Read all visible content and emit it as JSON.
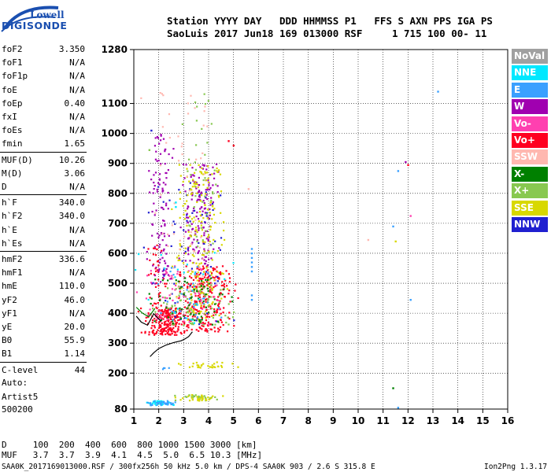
{
  "logo": {
    "line1": "Lowell",
    "line2": "DIGISONDE"
  },
  "header": {
    "row1": "Station YYYY DAY   DDD HHMMSS P1   FFS S AXN PPS IGA PS",
    "row2": "SaoLuis 2017 Jun18 169 013000 RSF     1 715 100 00- 11"
  },
  "params": [
    {
      "label": "foF2",
      "value": "3.350"
    },
    {
      "label": "foF1",
      "value": "N/A"
    },
    {
      "label": "foF1p",
      "value": "N/A"
    },
    {
      "label": "foE",
      "value": "N/A"
    },
    {
      "label": "foEp",
      "value": "0.40"
    },
    {
      "label": "fxI",
      "value": "N/A"
    },
    {
      "label": "foEs",
      "value": "N/A"
    },
    {
      "label": "fmin",
      "value": "1.65"
    },
    {
      "label": "MUF(D)",
      "value": "10.26"
    },
    {
      "label": "M(D)",
      "value": "3.06"
    },
    {
      "label": "D",
      "value": "N/A"
    },
    {
      "label": "h`F",
      "value": "340.0"
    },
    {
      "label": "h`F2",
      "value": "340.0"
    },
    {
      "label": "h`E",
      "value": "N/A"
    },
    {
      "label": "h`Es",
      "value": "N/A"
    },
    {
      "label": "hmF2",
      "value": "336.6"
    },
    {
      "label": "hmF1",
      "value": "N/A"
    },
    {
      "label": "hmE",
      "value": "110.0"
    },
    {
      "label": "yF2",
      "value": "46.0"
    },
    {
      "label": "yF1",
      "value": "N/A"
    },
    {
      "label": "yE",
      "value": "20.0"
    },
    {
      "label": "B0",
      "value": "55.9"
    },
    {
      "label": "B1",
      "value": "1.14"
    },
    {
      "label": "C-level",
      "value": "44"
    }
  ],
  "auto": {
    "line1": "Auto:",
    "line2": "Artist5",
    "line3": "500200"
  },
  "legend": [
    {
      "label": "NoVal",
      "bg": "#a0a0a0",
      "fg": "#ffffff"
    },
    {
      "label": "NNE",
      "bg": "#00e8ff",
      "fg": "#ffffff"
    },
    {
      "label": "E",
      "bg": "#3aa0ff",
      "fg": "#ffffff"
    },
    {
      "label": "W",
      "bg": "#a000b0",
      "fg": "#ffffff"
    },
    {
      "label": "Vo-",
      "bg": "#ff40b0",
      "fg": "#ffffff"
    },
    {
      "label": "Vo+",
      "bg": "#ff0020",
      "fg": "#ffffff"
    },
    {
      "label": "SSW",
      "bg": "#ffb8b0",
      "fg": "#ffffff"
    },
    {
      "label": "X-",
      "bg": "#008000",
      "fg": "#ffffff"
    },
    {
      "label": "X+",
      "bg": "#88c850",
      "fg": "#ffffff"
    },
    {
      "label": "SSE",
      "bg": "#d8d800",
      "fg": "#ffffff"
    },
    {
      "label": "NNW",
      "bg": "#2020d0",
      "fg": "#ffffff"
    }
  ],
  "bottom": {
    "row_d": "D     100  200  400  600  800 1000 1500 3000 [km]",
    "row_muf": "MUF   3.7  3.7  3.9  4.1  4.5  5.0  6.5 10.3 [MHz]",
    "file_info": "SAA0K_2017169013000.RSF / 300fx256h 50 kHz 5.0 km / DPS-4 SAA0K 903 / 2.6 S 315.8 E",
    "version": "Ion2Png 1.3.17"
  },
  "chart_data": {
    "type": "scatter",
    "title": "",
    "xlabel": "",
    "ylabel": "",
    "xlim": [
      1,
      16
    ],
    "ylim": [
      80,
      1280
    ],
    "x_ticks": [
      1,
      2,
      3,
      4,
      5,
      6,
      7,
      8,
      9,
      10,
      11,
      12,
      13,
      14,
      15,
      16
    ],
    "y_ticks": [
      80,
      200,
      300,
      400,
      500,
      600,
      700,
      800,
      900,
      1000,
      1100,
      1280
    ],
    "grid": "on",
    "legend_position": "right",
    "traces": [
      {
        "name": "NoVal",
        "x": [
          1.65,
          1.8,
          2.0,
          2.3,
          2.6,
          2.9,
          3.05,
          3.2,
          3.35
        ],
        "y": [
          255,
          268,
          282,
          294,
          302,
          308,
          314,
          322,
          338
        ]
      },
      {
        "name": "NoVal",
        "x": [
          1.1,
          1.3,
          1.55,
          1.8,
          2.1
        ],
        "y": [
          390,
          370,
          360,
          398,
          372
        ]
      },
      {
        "name": "X-",
        "x": [
          1.1,
          1.35,
          1.6,
          1.85
        ],
        "y": [
          420,
          400,
          388,
          416
        ]
      }
    ],
    "clusters": [
      {
        "name": "Vo+",
        "x": [
          1.5,
          3.0
        ],
        "y": [
          330,
          420
        ],
        "points": 230
      },
      {
        "name": "Vo+",
        "x": [
          3.0,
          4.8
        ],
        "y": [
          340,
          560
        ],
        "points": 260
      },
      {
        "name": "Vo+",
        "x": [
          1.6,
          2.2
        ],
        "y": [
          420,
          650
        ],
        "points": 40
      },
      {
        "name": "Vo-",
        "x": [
          1.6,
          4.6
        ],
        "y": [
          360,
          560
        ],
        "points": 80
      },
      {
        "name": "W",
        "x": [
          1.6,
          2.4
        ],
        "y": [
          500,
          1000
        ],
        "points": 110
      },
      {
        "name": "W",
        "x": [
          3.0,
          4.3
        ],
        "y": [
          560,
          900
        ],
        "points": 160
      },
      {
        "name": "NNW",
        "x": [
          1.6,
          4.6
        ],
        "y": [
          360,
          850
        ],
        "points": 70
      },
      {
        "name": "SSE",
        "x": [
          2.8,
          4.5
        ],
        "y": [
          380,
          900
        ],
        "points": 200
      },
      {
        "name": "SSE",
        "x": [
          2.9,
          4.8
        ],
        "y": [
          220,
          240
        ],
        "points": 30
      },
      {
        "name": "X+",
        "x": [
          2.0,
          5.0
        ],
        "y": [
          360,
          500
        ],
        "points": 80
      },
      {
        "name": "X+",
        "x": [
          3.0,
          4.3
        ],
        "y": [
          600,
          1140
        ],
        "points": 40
      },
      {
        "name": "X-",
        "x": [
          1.6,
          4.8
        ],
        "y": [
          360,
          520
        ],
        "points": 70
      },
      {
        "name": "SSW",
        "x": [
          1.7,
          4.3
        ],
        "y": [
          450,
          1140
        ],
        "points": 60
      },
      {
        "name": "NNE",
        "x": [
          1.6,
          4.6
        ],
        "y": [
          360,
          620
        ],
        "points": 25
      },
      {
        "name": "E",
        "x": [
          1.6,
          4.5
        ],
        "y": [
          380,
          560
        ],
        "points": 30
      },
      {
        "name": "NNE",
        "x": [
          1.6,
          2.6
        ],
        "y": [
          95,
          110
        ],
        "points": 40
      },
      {
        "name": "E",
        "x": [
          1.6,
          2.6
        ],
        "y": [
          95,
          110
        ],
        "points": 30
      },
      {
        "name": "X+",
        "x": [
          2.8,
          4.2
        ],
        "y": [
          110,
          130
        ],
        "points": 30
      },
      {
        "name": "SSE",
        "x": [
          2.8,
          4.2
        ],
        "y": [
          110,
          130
        ],
        "points": 30
      },
      {
        "name": "E",
        "x": [
          2.0,
          2.4
        ],
        "y": [
          215,
          220
        ],
        "points": 4
      }
    ],
    "points": [
      {
        "name": "E",
        "x": 5.73,
        "y": 540
      },
      {
        "name": "E",
        "x": 5.73,
        "y": 555
      },
      {
        "name": "E",
        "x": 5.73,
        "y": 570
      },
      {
        "name": "E",
        "x": 5.73,
        "y": 585
      },
      {
        "name": "E",
        "x": 5.73,
        "y": 600
      },
      {
        "name": "E",
        "x": 5.73,
        "y": 615
      },
      {
        "name": "E",
        "x": 5.73,
        "y": 445
      },
      {
        "name": "E",
        "x": 5.73,
        "y": 460
      },
      {
        "name": "NNE",
        "x": 2.68,
        "y": 755
      },
      {
        "name": "NNE",
        "x": 2.68,
        "y": 770
      },
      {
        "name": "E",
        "x": 13.2,
        "y": 1140
      },
      {
        "name": "E",
        "x": 11.6,
        "y": 875
      },
      {
        "name": "W",
        "x": 11.9,
        "y": 905
      },
      {
        "name": "Vo+",
        "x": 12.0,
        "y": 895
      },
      {
        "name": "Vo-",
        "x": 12.1,
        "y": 725
      },
      {
        "name": "E",
        "x": 11.4,
        "y": 690
      },
      {
        "name": "E",
        "x": 12.1,
        "y": 445
      },
      {
        "name": "E",
        "x": 11.6,
        "y": 85
      },
      {
        "name": "X-",
        "x": 11.4,
        "y": 150
      },
      {
        "name": "SSW",
        "x": 10.4,
        "y": 645
      },
      {
        "name": "SSE",
        "x": 11.5,
        "y": 640
      },
      {
        "name": "SSW",
        "x": 5.6,
        "y": 815
      },
      {
        "name": "Vo+",
        "x": 5.0,
        "y": 960
      },
      {
        "name": "Vo+",
        "x": 4.8,
        "y": 975
      },
      {
        "name": "X+",
        "x": 1.62,
        "y": 945
      },
      {
        "name": "NNW",
        "x": 1.7,
        "y": 1010
      }
    ]
  }
}
